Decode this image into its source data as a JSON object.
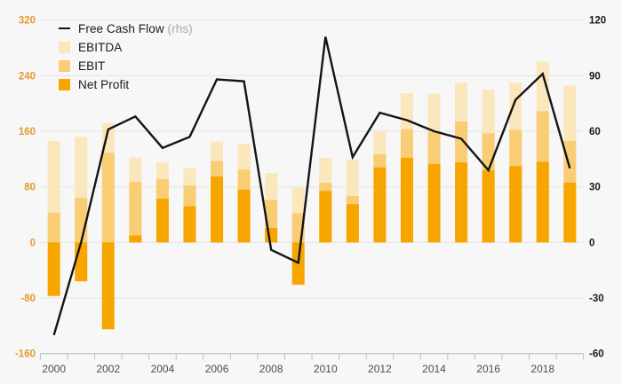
{
  "chart_data": {
    "type": "bar",
    "subtype": "bar-line-combo",
    "bar_mode": "overlay",
    "title": "",
    "x": [
      2000,
      2001,
      2002,
      2003,
      2004,
      2005,
      2006,
      2007,
      2008,
      2009,
      2010,
      2011,
      2012,
      2013,
      2014,
      2015,
      2016,
      2017,
      2018,
      2019
    ],
    "x_axis_tick_labels": [
      "2000",
      "2002",
      "2004",
      "2006",
      "2008",
      "2010",
      "2012",
      "2014",
      "2016",
      "2018"
    ],
    "bar_series": [
      {
        "name": "EBITDA",
        "axis": "left",
        "color": "#FBE7BC",
        "values": [
          146,
          152,
          172,
          122,
          115,
          107,
          145,
          142,
          100,
          79,
          122,
          119,
          160,
          215,
          214,
          230,
          220,
          230,
          260,
          226
        ]
      },
      {
        "name": "EBIT",
        "axis": "left",
        "color": "#F9CD74",
        "values": [
          43,
          64,
          129,
          87,
          91,
          82,
          117,
          105,
          61,
          42,
          86,
          67,
          127,
          163,
          159,
          174,
          157,
          162,
          189,
          146
        ]
      },
      {
        "name": "Net Profit",
        "axis": "left",
        "color": "#F7A600",
        "values": [
          -77,
          -56,
          -125,
          10,
          63,
          52,
          95,
          76,
          21,
          -61,
          74,
          55,
          108,
          122,
          113,
          115,
          104,
          110,
          116,
          86
        ]
      }
    ],
    "line_series": {
      "name": "Free Cash Flow",
      "suffix": " (rhs)",
      "axis": "right",
      "color": "#141414",
      "values": [
        -50,
        0,
        61,
        68,
        51,
        57,
        88,
        87,
        -4,
        -11,
        111,
        46,
        70,
        66,
        60,
        56,
        39,
        77,
        91,
        40
      ]
    },
    "left_axis": {
      "min": -160,
      "max": 320,
      "ticks": [
        320,
        240,
        160,
        80,
        0,
        -80,
        -160
      ],
      "label_color": "#E39A2E"
    },
    "right_axis": {
      "min": -60,
      "max": 120,
      "ticks": [
        120,
        90,
        60,
        30,
        0,
        -30,
        -60
      ],
      "label_color": "#1A1A1A"
    },
    "grid": "on",
    "grid_color": "#E3E3E3",
    "axis_line_color": "#B6C2CE",
    "x_label_color": "#4D4D4D",
    "background_color": "#F7F7F7",
    "legend_position": "top-left"
  }
}
